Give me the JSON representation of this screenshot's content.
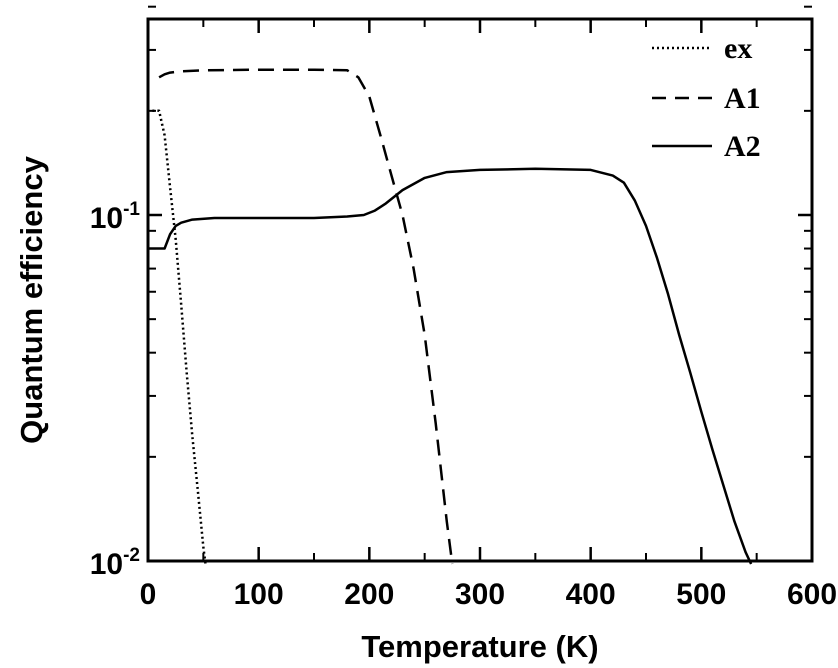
{
  "chart_data": {
    "type": "line",
    "xlabel": "Temperature  (K)",
    "ylabel": "Quantum efficiency",
    "xlim": [
      0,
      600
    ],
    "ylim": [
      0.01,
      0.4
    ],
    "yscale": "log",
    "x_ticks": [
      0,
      100,
      200,
      300,
      400,
      500,
      600
    ],
    "x_tick_labels": [
      "0",
      "100",
      "200",
      "300",
      "400",
      "500",
      "600"
    ],
    "y_ticks": [
      {
        "base": "10",
        "exp": "-2",
        "value": 0.01
      },
      {
        "base": "10",
        "exp": "-1",
        "value": 0.1
      }
    ],
    "legend_position": "top-right",
    "series": [
      {
        "name": "ex",
        "style": "dotted",
        "x": [
          4,
          10,
          15,
          20,
          25,
          30,
          35,
          40,
          45,
          50,
          52
        ],
        "y": [
          0.2,
          0.2,
          0.17,
          0.12,
          0.085,
          0.055,
          0.035,
          0.023,
          0.016,
          0.011,
          0.0098
        ]
      },
      {
        "name": "A1",
        "style": "dashed",
        "x": [
          10,
          15,
          20,
          30,
          50,
          100,
          150,
          180,
          190,
          200,
          210,
          220,
          230,
          240,
          250,
          260,
          270,
          275
        ],
        "y": [
          0.25,
          0.255,
          0.258,
          0.26,
          0.262,
          0.263,
          0.263,
          0.262,
          0.25,
          0.22,
          0.17,
          0.13,
          0.1,
          0.07,
          0.045,
          0.025,
          0.013,
          0.0098
        ]
      },
      {
        "name": "A2",
        "style": "solid",
        "x": [
          0,
          10,
          15,
          20,
          25,
          30,
          40,
          60,
          100,
          150,
          180,
          195,
          205,
          215,
          230,
          250,
          270,
          300,
          350,
          400,
          420,
          430,
          440,
          450,
          460,
          470,
          480,
          490,
          500,
          510,
          520,
          530,
          540,
          545
        ],
        "y": [
          0.08,
          0.08,
          0.08,
          0.088,
          0.093,
          0.095,
          0.097,
          0.098,
          0.098,
          0.098,
          0.099,
          0.1,
          0.103,
          0.108,
          0.118,
          0.128,
          0.133,
          0.135,
          0.136,
          0.135,
          0.13,
          0.124,
          0.11,
          0.093,
          0.075,
          0.059,
          0.045,
          0.035,
          0.027,
          0.021,
          0.0165,
          0.013,
          0.0106,
          0.0098
        ]
      }
    ]
  }
}
